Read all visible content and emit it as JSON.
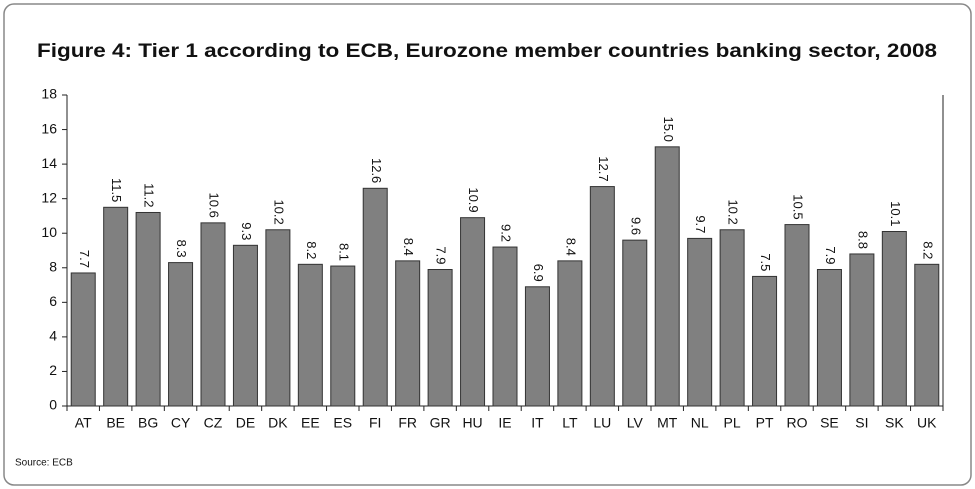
{
  "chart_data": {
    "type": "bar",
    "title": "Figure 4: Tier 1 according to ECB, Eurozone member countries banking sector, 2008",
    "source": "Source: ECB",
    "categories": [
      "AT",
      "BE",
      "BG",
      "CY",
      "CZ",
      "DE",
      "DK",
      "EE",
      "ES",
      "FI",
      "FR",
      "GR",
      "HU",
      "IE",
      "IT",
      "LT",
      "LU",
      "LV",
      "MT",
      "NL",
      "PL",
      "PT",
      "RO",
      "SE",
      "SI",
      "SK",
      "UK"
    ],
    "values": [
      7.7,
      11.5,
      11.2,
      8.3,
      10.6,
      9.3,
      10.2,
      8.2,
      8.1,
      12.6,
      8.4,
      7.9,
      10.9,
      9.2,
      6.9,
      8.4,
      12.7,
      9.6,
      15.0,
      9.7,
      10.2,
      7.5,
      10.5,
      7.9,
      8.8,
      10.1,
      8.2
    ],
    "value_labels": [
      "7.7",
      "11.5",
      "11.2",
      "8.3",
      "10.6",
      "9.3",
      "10.2",
      "8.2",
      "8.1",
      "12.6",
      "8.4",
      "7.9",
      "10.9",
      "9.2",
      "6.9",
      "8.4",
      "12.7",
      "9.6",
      "15.0",
      "9.7",
      "10.2",
      "7.5",
      "10.5",
      "7.9",
      "8.8",
      "10.1",
      "8.2"
    ],
    "color": "#808080",
    "ylim": [
      0,
      18
    ],
    "yticks": [
      0,
      2,
      4,
      6,
      8,
      10,
      12,
      14,
      16,
      18
    ],
    "grid": false
  }
}
